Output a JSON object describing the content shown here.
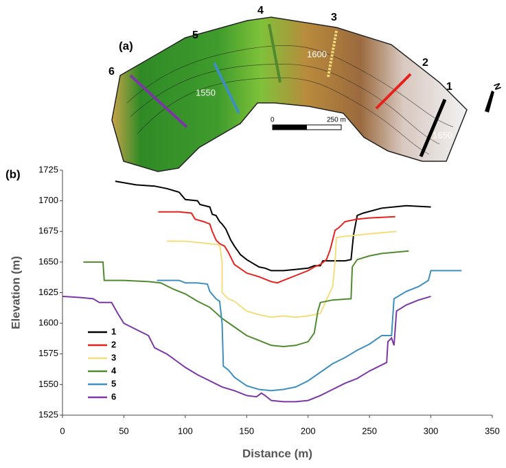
{
  "map": {
    "panel_label": "(a)",
    "section_labels": [
      "1",
      "2",
      "3",
      "4",
      "5",
      "6"
    ],
    "contour_labels": [
      "1550",
      "1600",
      "1650"
    ],
    "scale_labels": [
      "0",
      "250 m"
    ],
    "north": "N"
  },
  "chart_data": {
    "type": "line",
    "panel_label": "(b)",
    "x_label": "Distance (m)",
    "y_label": "Elevation (m)",
    "xlim": [
      0,
      350
    ],
    "xticks": [
      0,
      50,
      100,
      150,
      200,
      250,
      300,
      350
    ],
    "ylim": [
      1525,
      1725
    ],
    "yticks": [
      1525,
      1550,
      1575,
      1600,
      1625,
      1650,
      1675,
      1700,
      1725
    ],
    "grid": false,
    "legend": "lower left",
    "series": [
      {
        "name": "1",
        "color": "#000000",
        "x": [
          43,
          60,
          75,
          85,
          95,
          100,
          110,
          112,
          120,
          122,
          125,
          128,
          130,
          133,
          137,
          140,
          145,
          150,
          155,
          160,
          165,
          170,
          180,
          190,
          200,
          205,
          210,
          212,
          220,
          230,
          235,
          237,
          240,
          245,
          260,
          280,
          300
        ],
        "values": [
          1716,
          1713,
          1712,
          1710,
          1707,
          1701,
          1700,
          1697,
          1695,
          1689,
          1688,
          1683,
          1681,
          1677,
          1668,
          1663,
          1656,
          1652,
          1649,
          1646,
          1645,
          1643,
          1643,
          1644,
          1645,
          1647,
          1647,
          1651,
          1651,
          1651,
          1652,
          1672,
          1688,
          1690,
          1694,
          1696,
          1695
        ]
      },
      {
        "name": "2",
        "color": "#e8201c",
        "x": [
          78,
          95,
          105,
          108,
          115,
          120,
          122,
          125,
          128,
          132,
          135,
          140,
          150,
          160,
          170,
          175,
          180,
          190,
          200,
          205,
          210,
          215,
          218,
          222,
          225,
          230,
          240,
          250,
          271
        ],
        "values": [
          1691,
          1691,
          1690,
          1685,
          1683,
          1681,
          1675,
          1668,
          1665,
          1663,
          1658,
          1648,
          1641,
          1638,
          1634,
          1633,
          1635,
          1639,
          1643,
          1646,
          1648,
          1652,
          1660,
          1676,
          1678,
          1683,
          1685,
          1686,
          1687
        ]
      },
      {
        "name": "3",
        "color": "#f5dd7c",
        "x": [
          85,
          100,
          110,
          120,
          128,
          130,
          130,
          135,
          140,
          145,
          150,
          160,
          170,
          180,
          190,
          200,
          210,
          220,
          222,
          223,
          230,
          250,
          272
        ],
        "values": [
          1667,
          1667,
          1666,
          1665,
          1664,
          1650,
          1625,
          1620,
          1618,
          1614,
          1610,
          1607,
          1605,
          1606,
          1605,
          1606,
          1608,
          1630,
          1650,
          1670,
          1671,
          1673,
          1675
        ]
      },
      {
        "name": "4",
        "color": "#4f8a2f",
        "x": [
          17,
          33,
          34,
          50,
          70,
          80,
          90,
          100,
          110,
          120,
          130,
          140,
          150,
          160,
          170,
          180,
          190,
          200,
          205,
          208,
          210,
          220,
          235,
          236,
          240,
          250,
          260,
          282
        ],
        "values": [
          1650,
          1650,
          1635,
          1635,
          1634,
          1633,
          1628,
          1624,
          1618,
          1613,
          1604,
          1597,
          1590,
          1586,
          1582,
          1581,
          1582,
          1585,
          1592,
          1610,
          1617,
          1619,
          1620,
          1646,
          1652,
          1655,
          1657,
          1659
        ]
      },
      {
        "name": "5",
        "color": "#3d8fc0",
        "x": [
          77,
          95,
          100,
          110,
          118,
          120,
          125,
          128,
          130,
          131,
          135,
          140,
          150,
          160,
          170,
          180,
          190,
          200,
          210,
          220,
          230,
          240,
          250,
          260,
          268,
          270,
          280,
          290,
          298,
          300,
          325
        ],
        "values": [
          1635,
          1635,
          1633,
          1633,
          1632,
          1626,
          1620,
          1618,
          1600,
          1565,
          1562,
          1556,
          1549,
          1546,
          1545,
          1546,
          1548,
          1553,
          1560,
          1567,
          1572,
          1578,
          1583,
          1590,
          1590,
          1620,
          1626,
          1630,
          1635,
          1643,
          1643
        ]
      },
      {
        "name": "6",
        "color": "#7a37a5",
        "x": [
          0,
          15,
          25,
          30,
          40,
          45,
          50,
          60,
          70,
          75,
          85,
          100,
          110,
          120,
          130,
          140,
          150,
          158,
          162,
          165,
          170,
          180,
          190,
          200,
          210,
          220,
          230,
          240,
          250,
          260,
          264,
          265,
          268,
          270,
          272,
          280,
          290,
          300
        ],
        "values": [
          1622,
          1621,
          1620,
          1617,
          1617,
          1608,
          1600,
          1595,
          1590,
          1580,
          1575,
          1564,
          1558,
          1553,
          1548,
          1545,
          1541,
          1540,
          1543,
          1541,
          1537,
          1536,
          1536,
          1537,
          1541,
          1546,
          1551,
          1555,
          1561,
          1566,
          1568,
          1585,
          1588,
          1582,
          1610,
          1615,
          1619,
          1622
        ]
      }
    ]
  }
}
